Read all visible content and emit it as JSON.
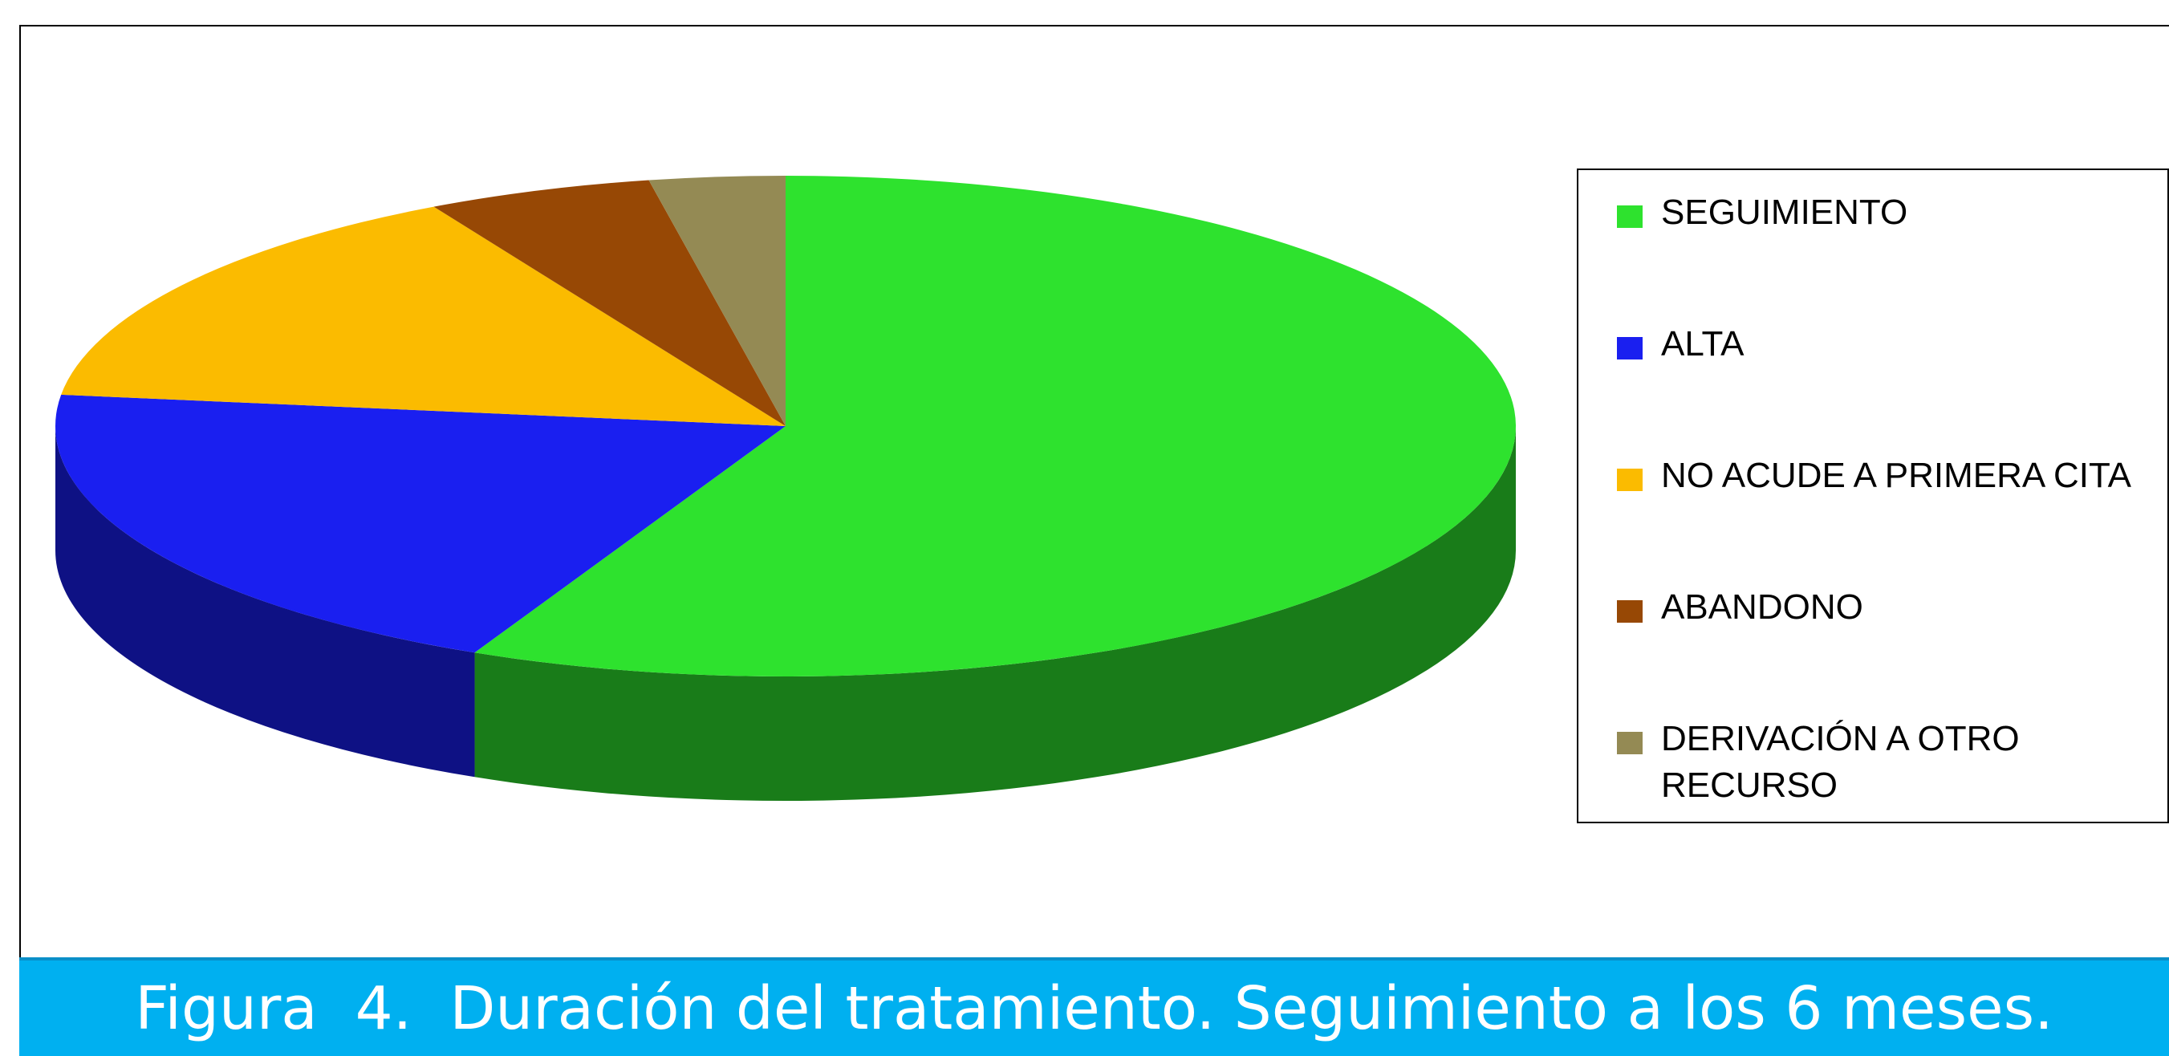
{
  "chart_data": {
    "type": "pie",
    "title": "Figura  4.  Duración del tratamiento. Seguimiento a los 6 meses.",
    "categories": [
      "SEGUIMIENTO",
      "ALTA",
      "NO ACUDE A PRIMERA CITA",
      "ABANDONO",
      "DERIVACIÓN A OTRO RECURSO"
    ],
    "values": [
      57,
      20,
      15,
      5,
      3
    ],
    "colors": [
      "#2ee22e",
      "#1a1ff0",
      "#fbbb00",
      "#974805",
      "#948a54"
    ],
    "legend": "right"
  }
}
